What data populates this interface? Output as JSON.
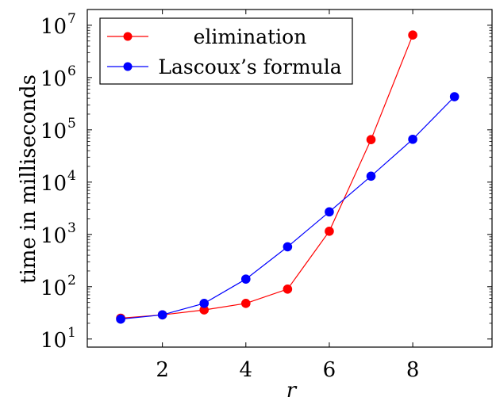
{
  "chart_data": {
    "type": "line",
    "xlabel": "r",
    "ylabel": "time in milliseconds",
    "yscale": "log",
    "xlim": [
      0.2,
      9.9
    ],
    "ylim": [
      7,
      20000000
    ],
    "xticks": [
      2,
      4,
      6,
      8
    ],
    "yticks": [
      {
        "value": 10,
        "base": "10",
        "exp": "1"
      },
      {
        "value": 100,
        "base": "10",
        "exp": "2"
      },
      {
        "value": 1000,
        "base": "10",
        "exp": "3"
      },
      {
        "value": 10000,
        "base": "10",
        "exp": "4"
      },
      {
        "value": 100000,
        "base": "10",
        "exp": "5"
      },
      {
        "value": 1000000,
        "base": "10",
        "exp": "6"
      },
      {
        "value": 10000000,
        "base": "10",
        "exp": "7"
      }
    ],
    "legend_position": "top-left",
    "series": [
      {
        "name": "elimination",
        "color": "#ff0000",
        "x": [
          1,
          2,
          3,
          4,
          5,
          6,
          7,
          8
        ],
        "y": [
          25,
          29,
          36,
          48,
          90,
          1150,
          65000,
          6500000
        ]
      },
      {
        "name": "Lascoux’s formula",
        "color": "#0000ff",
        "x": [
          1,
          2,
          3,
          4,
          5,
          6,
          7,
          8,
          9
        ],
        "y": [
          24,
          29,
          48,
          140,
          580,
          2700,
          13000,
          66000,
          430000
        ]
      }
    ]
  }
}
